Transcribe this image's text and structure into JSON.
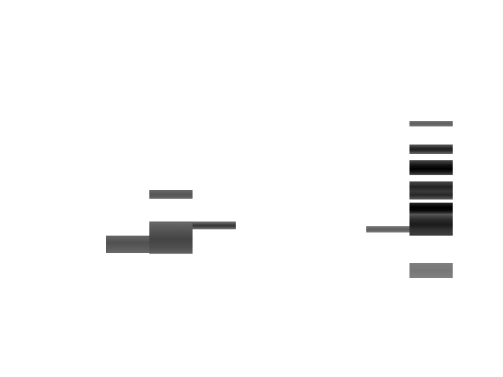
{
  "image": {
    "kind": "gel-electrophoresis-bands",
    "background": "#ffffff"
  },
  "lanes": [
    {
      "name": "lane-1",
      "bands": [
        {
          "name": "band-a",
          "color": "#585858",
          "shade": "dark-gray"
        }
      ]
    },
    {
      "name": "lane-2",
      "bands": [
        {
          "name": "band-a",
          "color": "#606060",
          "shade": "gray"
        },
        {
          "name": "band-b",
          "color": "#4a4a4a",
          "shade": "dark-gray"
        }
      ]
    },
    {
      "name": "lane-3",
      "bands": [
        {
          "name": "band-a",
          "color": "#3c3c3c",
          "shade": "very-dark-gray"
        }
      ]
    },
    {
      "name": "lane-4",
      "bands": [
        {
          "name": "band-a",
          "color": "#6a6a6a",
          "shade": "gray"
        }
      ]
    },
    {
      "name": "lane-5",
      "bands": [
        {
          "name": "band-a",
          "color": "#6e6e6e",
          "shade": "gray"
        },
        {
          "name": "band-b",
          "color": "#2a2a2a",
          "shade": "near-black"
        },
        {
          "name": "band-c",
          "color": "#0a0a0a",
          "shade": "black"
        },
        {
          "name": "band-d",
          "color": "#303030",
          "shade": "near-black"
        },
        {
          "name": "band-e",
          "color": "#141414",
          "shade": "black"
        },
        {
          "name": "band-f",
          "color": "#262626",
          "shade": "near-black"
        },
        {
          "name": "band-g",
          "color": "#7a7a7a",
          "shade": "light-gray"
        }
      ]
    }
  ]
}
